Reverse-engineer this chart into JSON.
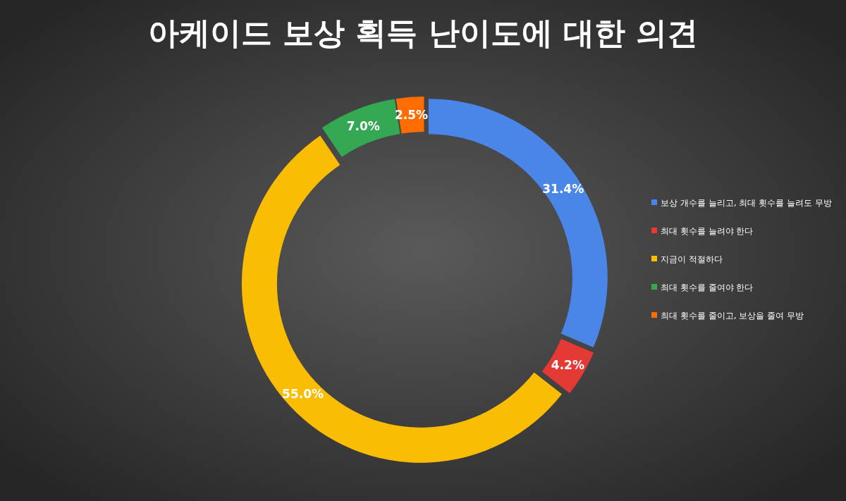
{
  "chart_data": {
    "type": "donut",
    "title": "아케이드 보상 획득 난이도에 대한 의견",
    "categories": [
      "보상 개수를 늘리고, 최대 횟수를 늘려도 무방",
      "최대 횟수를 늘려야 한다",
      "지금이 적절하다",
      "최대 횟수를 줄여야 한다",
      "최대 횟수를 줄이고, 보상을 줄여 무방"
    ],
    "values": [
      31.4,
      4.2,
      55.0,
      7.0,
      2.5
    ],
    "colors": [
      "#4a86e8",
      "#e53935",
      "#fbbc04",
      "#34a853",
      "#ff6d01"
    ],
    "value_labels": [
      "31.4%",
      "4.2%",
      "55.0%",
      "7.0%",
      "2.5%"
    ],
    "legend": "right"
  }
}
